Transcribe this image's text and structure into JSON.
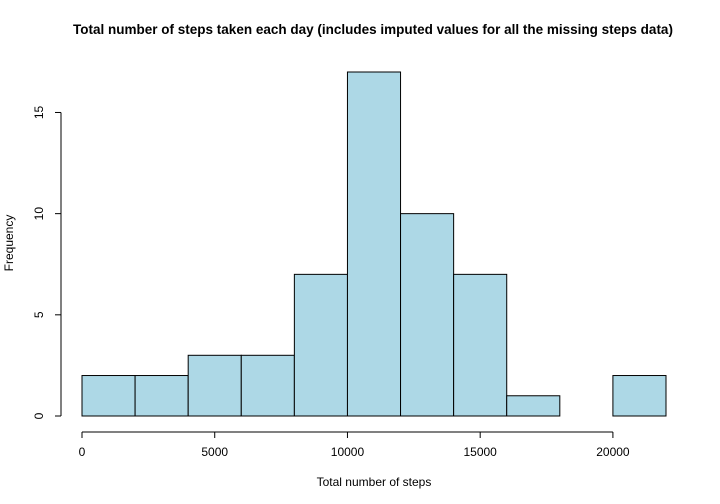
{
  "chart_data": {
    "type": "bar",
    "title": "Total number of steps taken each day (includes imputed values for all the missing steps data)",
    "xlabel": "Total number of steps",
    "ylabel": "Frequency",
    "bin_width": 2000,
    "bin_starts": [
      0,
      2000,
      4000,
      6000,
      8000,
      10000,
      12000,
      14000,
      16000,
      18000,
      20000
    ],
    "values": [
      2,
      2,
      3,
      3,
      7,
      17,
      10,
      7,
      1,
      0,
      2
    ],
    "xlim": [
      0,
      22000
    ],
    "ylim": [
      0,
      17
    ],
    "x_ticks": [
      0,
      5000,
      10000,
      15000,
      20000
    ],
    "y_ticks": [
      0,
      5,
      10,
      15
    ],
    "bar_color": "#add8e6",
    "grid": false
  }
}
